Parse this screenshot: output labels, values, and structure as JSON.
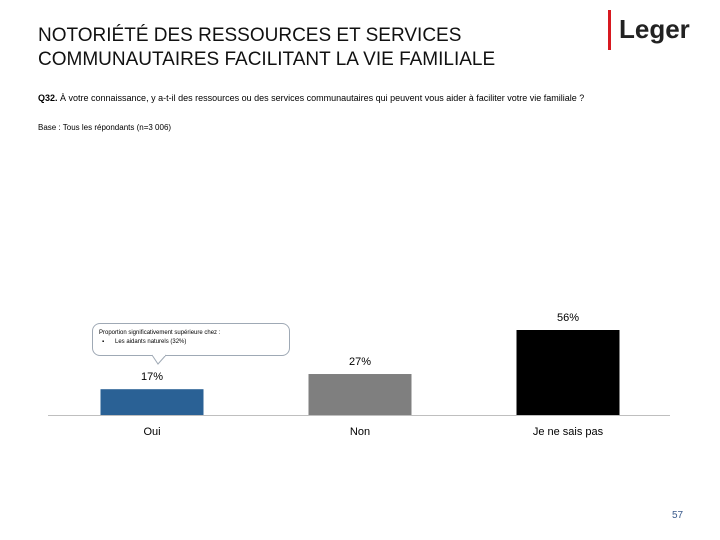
{
  "header": {
    "title_line1": "NOTORIÉTÉ DES RESSOURCES ET SERVICES",
    "title_line2": "COMMUNAUTAIRES FACILITANT LA VIE FAMILIALE",
    "logo_text": "Leger"
  },
  "question": {
    "code": "Q32.",
    "text": " À votre connaissance, y a-t-il des ressources ou des services communautaires qui peuvent vous aider à faciliter votre vie familiale ?",
    "base": "Base : Tous les répondants (n=3 006)"
  },
  "callout": {
    "heading": "Proportion significativement supérieure chez :",
    "item": "Les aidants naturels (32%)"
  },
  "page_number": "57",
  "colors": {
    "oui": "#2a6195",
    "non": "#7f7f7f",
    "nsp": "#000000",
    "accent": "#d71920"
  },
  "chart_data": {
    "type": "bar",
    "title": "",
    "categories": [
      "Oui",
      "Non",
      "Je ne sais pas"
    ],
    "values": [
      17,
      27,
      56
    ],
    "value_labels": [
      "17%",
      "27%",
      "56%"
    ],
    "unit": "%",
    "xlabel": "",
    "ylabel": "",
    "ylim": [
      0,
      100
    ],
    "grid": false
  }
}
